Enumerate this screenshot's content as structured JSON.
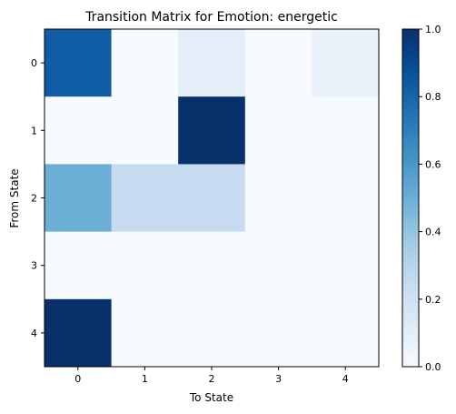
{
  "chart_data": {
    "type": "heatmap",
    "title": "Transition Matrix for Emotion: energetic",
    "xlabel": "To State",
    "ylabel": "From State",
    "x_categories": [
      "0",
      "1",
      "2",
      "3",
      "4"
    ],
    "y_categories": [
      "0",
      "1",
      "2",
      "3",
      "4"
    ],
    "values": [
      [
        0.83,
        0.0,
        0.1,
        0.0,
        0.07
      ],
      [
        0.0,
        0.0,
        1.0,
        0.0,
        0.0
      ],
      [
        0.5,
        0.25,
        0.25,
        0.0,
        0.0
      ],
      [
        0.0,
        0.0,
        0.0,
        0.0,
        0.0
      ],
      [
        1.0,
        0.0,
        0.0,
        0.0,
        0.0
      ]
    ],
    "colorbar": {
      "min": 0.0,
      "max": 1.0,
      "ticks": [
        "0.0",
        "0.2",
        "0.4",
        "0.6",
        "0.8",
        "1.0"
      ],
      "colormap": "Blues"
    },
    "grid": false,
    "legend": "none"
  }
}
